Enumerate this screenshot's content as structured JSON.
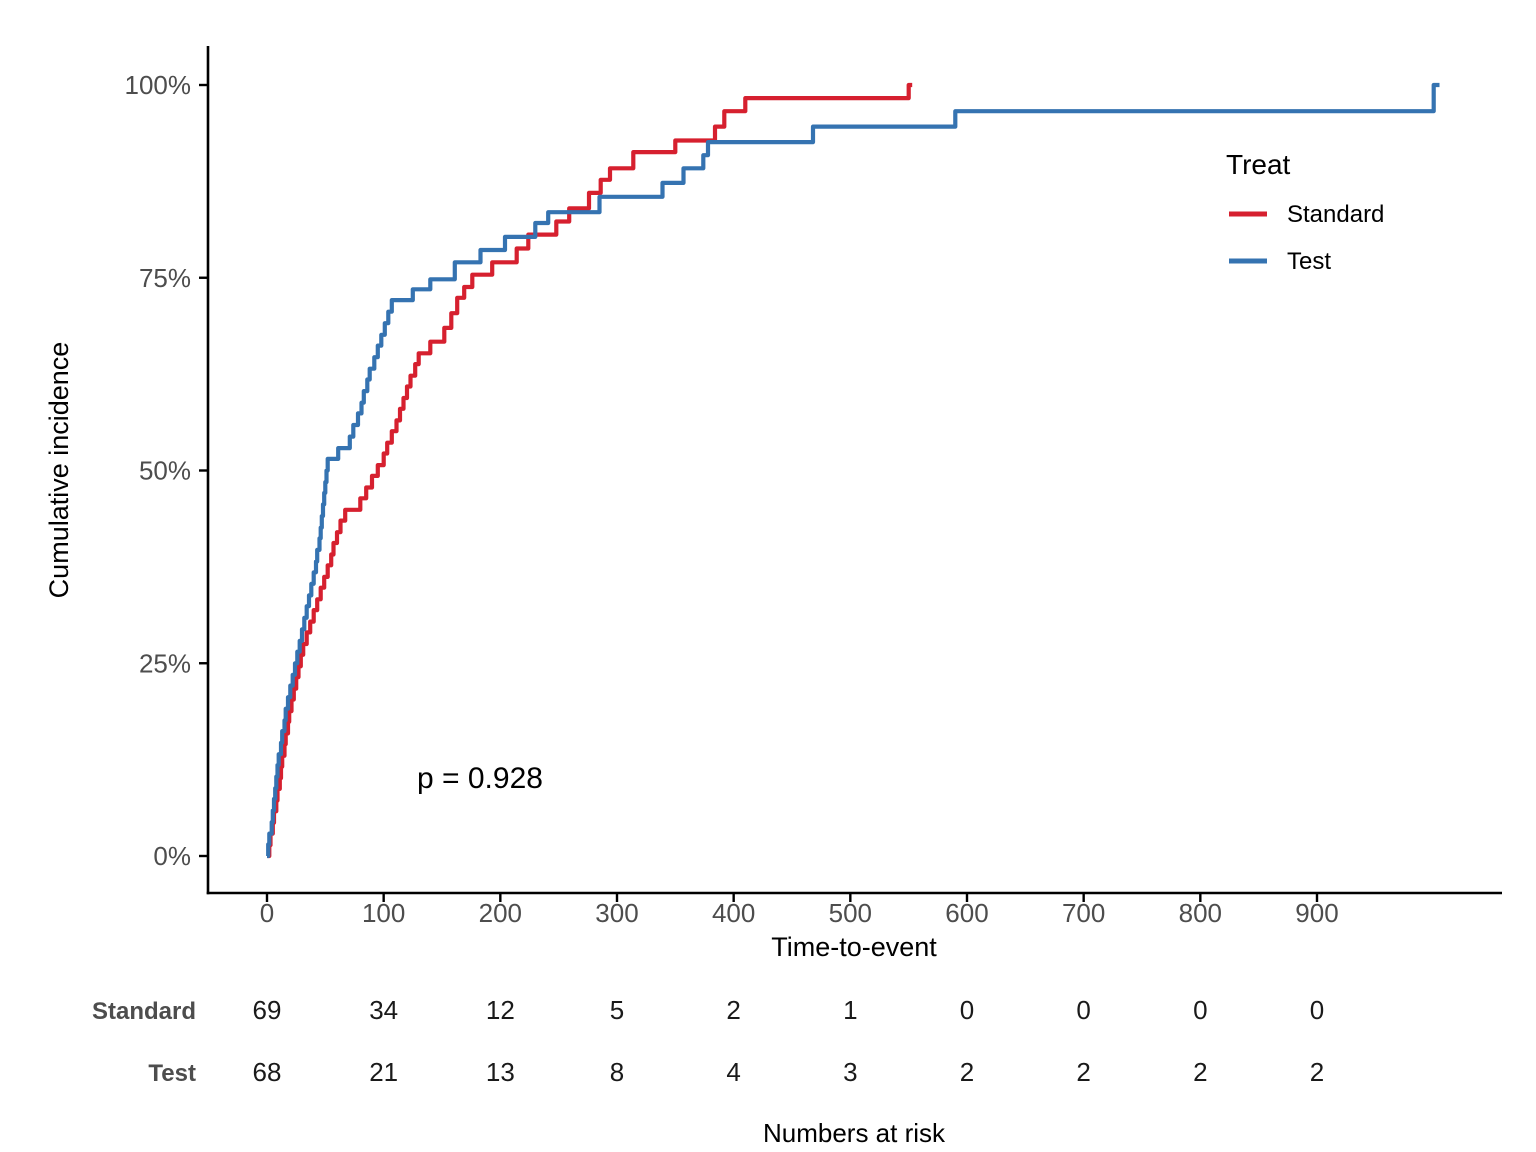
{
  "colors": {
    "standard": "#D6202F",
    "test": "#3573B1",
    "axis_line": "#000000",
    "tick_label": "#4D4D4D",
    "risk_row_label": "#4D4D4D",
    "risk_value": "#1A1A1A"
  },
  "legend": {
    "title": "Treat",
    "entries": [
      {
        "label": "Standard",
        "color": "#D6202F"
      },
      {
        "label": "Test",
        "color": "#3573B1"
      }
    ]
  },
  "annotation": {
    "p_label": "p = 0.928"
  },
  "axes": {
    "x": {
      "label": "Time-to-event",
      "ticks": [
        0,
        100,
        200,
        300,
        400,
        500,
        600,
        700,
        800,
        900
      ]
    },
    "y": {
      "label": "Cumulative incidence",
      "tick_labels": [
        "0%",
        "25%",
        "50%",
        "75%",
        "100%"
      ],
      "tick_values": [
        0,
        25,
        50,
        75,
        100
      ]
    }
  },
  "risk_table": {
    "caption": "Numbers at risk",
    "time_points": [
      0,
      100,
      200,
      300,
      400,
      500,
      600,
      700,
      800,
      900
    ],
    "rows": [
      {
        "label": "Standard",
        "values": [
          "69",
          "34",
          "12",
          "5",
          "2",
          "1",
          "0",
          "0",
          "0",
          "0"
        ]
      },
      {
        "label": "Test",
        "values": [
          "68",
          "21",
          "13",
          "8",
          "4",
          "3",
          "2",
          "2",
          "2",
          "2"
        ]
      }
    ]
  },
  "chart_data": {
    "type": "line",
    "subtype": "step",
    "title": "",
    "xlabel": "Time-to-event",
    "ylabel": "Cumulative incidence",
    "xlim": [
      0,
      1058
    ],
    "ylim": [
      0,
      100
    ],
    "x_ticks": [
      0,
      100,
      200,
      300,
      400,
      500,
      600,
      700,
      800,
      900
    ],
    "y_ticks_percent": [
      0,
      25,
      50,
      75,
      100
    ],
    "grid": false,
    "legend_position": "right-top",
    "p_value_text": "p = 0.928",
    "series": [
      {
        "name": "Standard",
        "color": "#D6202F",
        "end_time": 553,
        "points": [
          [
            1,
            0
          ],
          [
            2,
            1.4
          ],
          [
            3,
            2.9
          ],
          [
            5,
            4.3
          ],
          [
            6,
            5.8
          ],
          [
            8,
            7.2
          ],
          [
            9,
            8.7
          ],
          [
            11,
            10.1
          ],
          [
            12,
            11.6
          ],
          [
            13,
            13.0
          ],
          [
            15,
            14.5
          ],
          [
            16,
            15.9
          ],
          [
            18,
            17.4
          ],
          [
            19,
            18.8
          ],
          [
            21,
            20.3
          ],
          [
            23,
            21.7
          ],
          [
            25,
            23.2
          ],
          [
            27,
            24.6
          ],
          [
            29,
            26.1
          ],
          [
            31,
            27.5
          ],
          [
            34,
            29.0
          ],
          [
            37,
            30.4
          ],
          [
            40,
            31.9
          ],
          [
            43,
            33.3
          ],
          [
            46,
            34.8
          ],
          [
            49,
            36.2
          ],
          [
            52,
            37.7
          ],
          [
            55,
            39.1
          ],
          [
            57,
            40.6
          ],
          [
            60,
            42.0
          ],
          [
            63,
            43.5
          ],
          [
            67,
            44.9
          ],
          [
            80,
            46.4
          ],
          [
            85,
            47.8
          ],
          [
            90,
            49.3
          ],
          [
            95,
            50.7
          ],
          [
            100,
            52.2
          ],
          [
            103,
            53.6
          ],
          [
            107,
            55.1
          ],
          [
            111,
            56.5
          ],
          [
            114,
            58.0
          ],
          [
            117,
            59.4
          ],
          [
            120,
            60.9
          ],
          [
            123,
            62.3
          ],
          [
            127,
            63.8
          ],
          [
            130,
            65.2
          ],
          [
            140,
            66.7
          ],
          [
            152,
            68.5
          ],
          [
            158,
            70.4
          ],
          [
            163,
            72.4
          ],
          [
            169,
            73.8
          ],
          [
            176,
            75.4
          ],
          [
            193,
            77.0
          ],
          [
            214,
            78.8
          ],
          [
            224,
            80.6
          ],
          [
            248,
            82.3
          ],
          [
            259,
            84.0
          ],
          [
            276,
            86.0
          ],
          [
            286,
            87.7
          ],
          [
            294,
            89.2
          ],
          [
            314,
            91.3
          ],
          [
            350,
            92.8
          ],
          [
            384,
            94.6
          ],
          [
            392,
            96.6
          ],
          [
            410,
            98.3
          ],
          [
            550,
            100
          ]
        ]
      },
      {
        "name": "Test",
        "color": "#3573B1",
        "end_time": 1005,
        "points": [
          [
            0,
            0
          ],
          [
            1,
            1.5
          ],
          [
            2,
            2.9
          ],
          [
            4,
            4.4
          ],
          [
            5,
            5.9
          ],
          [
            6,
            7.4
          ],
          [
            7,
            8.8
          ],
          [
            8,
            10.3
          ],
          [
            9,
            11.8
          ],
          [
            10,
            13.2
          ],
          [
            12,
            14.7
          ],
          [
            13,
            16.2
          ],
          [
            15,
            17.6
          ],
          [
            16,
            19.1
          ],
          [
            18,
            20.6
          ],
          [
            20,
            22.1
          ],
          [
            22,
            23.5
          ],
          [
            24,
            25.0
          ],
          [
            26,
            26.5
          ],
          [
            28,
            27.9
          ],
          [
            30,
            29.4
          ],
          [
            32,
            30.9
          ],
          [
            34,
            32.4
          ],
          [
            36,
            33.8
          ],
          [
            38,
            35.3
          ],
          [
            40,
            36.8
          ],
          [
            42,
            38.2
          ],
          [
            43,
            39.7
          ],
          [
            45,
            41.2
          ],
          [
            46,
            42.6
          ],
          [
            47,
            44.1
          ],
          [
            48,
            45.6
          ],
          [
            49,
            47.1
          ],
          [
            50,
            48.5
          ],
          [
            51,
            50.0
          ],
          [
            52,
            51.5
          ],
          [
            61,
            52.9
          ],
          [
            71,
            54.4
          ],
          [
            74,
            55.9
          ],
          [
            78,
            57.4
          ],
          [
            81,
            58.8
          ],
          [
            83,
            60.3
          ],
          [
            86,
            61.8
          ],
          [
            88,
            63.2
          ],
          [
            92,
            64.7
          ],
          [
            95,
            66.2
          ],
          [
            98,
            67.6
          ],
          [
            101,
            69.1
          ],
          [
            104,
            70.6
          ],
          [
            107,
            72.1
          ],
          [
            125,
            73.5
          ],
          [
            140,
            74.8
          ],
          [
            161,
            77.0
          ],
          [
            183,
            78.6
          ],
          [
            204,
            80.3
          ],
          [
            230,
            82.1
          ],
          [
            241,
            83.5
          ],
          [
            285,
            85.5
          ],
          [
            339,
            87.3
          ],
          [
            357,
            89.2
          ],
          [
            374,
            90.9
          ],
          [
            378,
            92.6
          ],
          [
            468,
            94.6
          ],
          [
            590,
            96.6
          ],
          [
            1000,
            100
          ]
        ]
      }
    ]
  }
}
